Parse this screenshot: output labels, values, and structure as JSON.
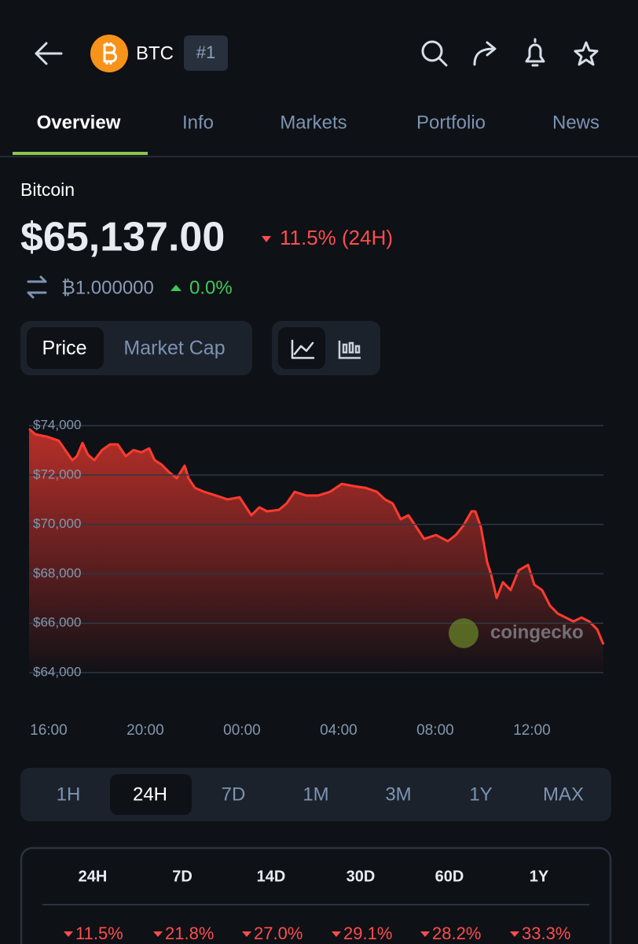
{
  "header": {
    "symbol": "BTC",
    "rank": "#1"
  },
  "tabs": [
    "Overview",
    "Info",
    "Markets",
    "Portfolio",
    "News"
  ],
  "coin": {
    "name": "Bitcoin",
    "price": "$65,137.00",
    "change_24h": "11.5% (24H)",
    "btc_price": "₿1.000000",
    "btc_change": "0.0%"
  },
  "chart_toggle": [
    "Price",
    "Market Cap"
  ],
  "chart_data": {
    "type": "line",
    "color": "#ff3b30",
    "grid": true,
    "watermark": "coingecko",
    "x": [
      -0.81,
      -0.55,
      -0.07,
      0.42,
      0.75,
      0.98,
      1.17,
      1.4,
      1.63,
      1.89,
      2.21,
      2.54,
      2.86,
      3.19,
      3.51,
      3.84,
      4.16,
      4.39,
      4.65,
      4.98,
      5.3,
      5.63,
      5.79,
      6.05,
      6.44,
      6.93,
      7.41,
      7.9,
      8.39,
      8.72,
      9.04,
      9.53,
      9.85,
      10.18,
      10.67,
      11.15,
      11.64,
      12.13,
      12.62,
      13.11,
      13.59,
      13.92,
      14.24,
      14.57,
      14.89,
      15.22,
      15.54,
      16.03,
      16.52,
      16.85,
      17.17,
      17.5,
      17.66,
      17.89,
      18.15,
      18.31,
      18.54,
      18.8,
      19.12,
      19.45,
      19.84,
      20.1,
      20.42,
      20.75,
      21.07,
      21.4,
      21.72,
      22.05,
      22.37,
      22.7,
      22.96
    ],
    "values": [
      73870,
      73650,
      73550,
      73390,
      72920,
      72600,
      72760,
      73300,
      72820,
      72600,
      73010,
      73240,
      73240,
      72760,
      73010,
      72920,
      73080,
      72600,
      72440,
      72120,
      71870,
      72380,
      71870,
      71480,
      71320,
      71170,
      71010,
      71100,
      70370,
      70690,
      70530,
      70590,
      70850,
      71320,
      71170,
      71170,
      71320,
      71640,
      71550,
      71480,
      71320,
      71010,
      70850,
      70210,
      70370,
      69890,
      69410,
      69570,
      69320,
      69570,
      69960,
      70530,
      70530,
      69890,
      68460,
      67980,
      67020,
      67660,
      67340,
      68140,
      68360,
      67560,
      67340,
      66710,
      66390,
      66230,
      66070,
      66230,
      66070,
      65750,
      65140
    ],
    "xlim": [
      -0.81,
      22.96
    ],
    "xticks": [
      {
        "value": 0,
        "label": "16:00"
      },
      {
        "value": 4,
        "label": "20:00"
      },
      {
        "value": 8,
        "label": "00:00"
      },
      {
        "value": 12,
        "label": "04:00"
      },
      {
        "value": 16,
        "label": "08:00"
      },
      {
        "value": 20,
        "label": "12:00"
      }
    ],
    "ylim": [
      64000,
      74000
    ],
    "yticks": [
      {
        "value": 64000,
        "label": "$64,000"
      },
      {
        "value": 66000,
        "label": "$66,000"
      },
      {
        "value": 68000,
        "label": "$68,000"
      },
      {
        "value": 70000,
        "label": "$70,000"
      },
      {
        "value": 72000,
        "label": "$72,000"
      },
      {
        "value": 74000,
        "label": "$74,000"
      }
    ]
  },
  "ranges": [
    "1H",
    "24H",
    "7D",
    "1M",
    "3M",
    "1Y",
    "MAX"
  ],
  "performance": {
    "periods": [
      "24H",
      "7D",
      "14D",
      "30D",
      "60D",
      "1Y"
    ],
    "changes": [
      "11.5%",
      "21.8%",
      "27.0%",
      "29.1%",
      "28.2%",
      "33.3%"
    ]
  }
}
